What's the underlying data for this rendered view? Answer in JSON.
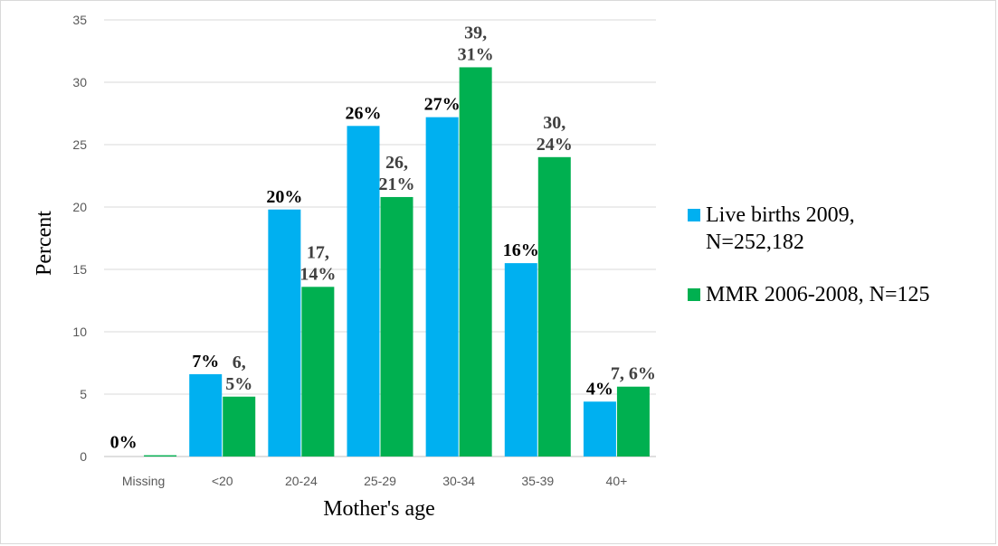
{
  "chart_data": {
    "type": "bar",
    "xlabel": "Mother's age",
    "ylabel": "Percent",
    "ylim": [
      0,
      35
    ],
    "yticks": [
      0,
      5,
      10,
      15,
      20,
      25,
      30,
      35
    ],
    "grid": true,
    "legend_position": "right",
    "categories": [
      "Missing",
      "<20",
      "20-24",
      "25-29",
      "30-34",
      "35-39",
      "40+"
    ],
    "series": [
      {
        "name_lines": [
          "Live births 2009,",
          "N=252,182"
        ],
        "color": "#00B0F0",
        "values": [
          0,
          6.6,
          19.8,
          26.5,
          27.2,
          15.5,
          4.4
        ],
        "labels": [
          "",
          "7%",
          "20%",
          "26%",
          "27%",
          "16%",
          "4%"
        ]
      },
      {
        "name_lines": [
          "MMR 2006-2008, N=125"
        ],
        "color": "#00B050",
        "values": [
          0.1,
          4.8,
          13.6,
          20.8,
          31.2,
          24.0,
          5.6
        ],
        "labels": [
          "0%",
          "6,|5%",
          "17,|14%",
          "26,|21%",
          "39,|31%",
          "30,|24%",
          "7, 6%"
        ]
      }
    ]
  }
}
